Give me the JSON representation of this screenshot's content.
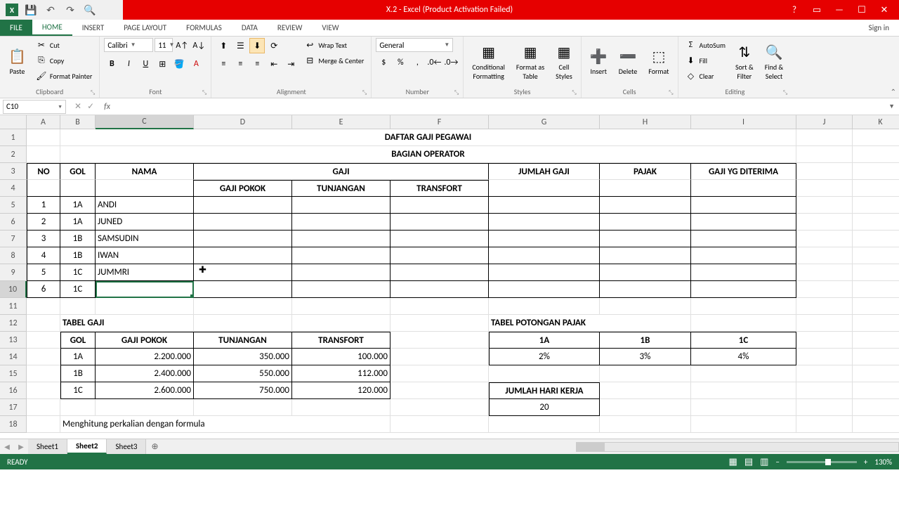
{
  "title": "X.2 - Excel (Product Activation Failed)",
  "signin": "Sign in",
  "menu": {
    "file": "FILE",
    "home": "HOME",
    "insert": "INSERT",
    "pageLayout": "PAGE LAYOUT",
    "formulas": "FORMULAS",
    "data": "DATA",
    "review": "REVIEW",
    "view": "VIEW"
  },
  "ribbon": {
    "clipboard": {
      "label": "Clipboard",
      "paste": "Paste",
      "cut": "Cut",
      "copy": "Copy",
      "formatPainter": "Format Painter"
    },
    "font": {
      "label": "Font",
      "name": "Calibri",
      "size": "11"
    },
    "alignment": {
      "label": "Alignment",
      "wrapText": "Wrap Text",
      "mergeCenter": "Merge & Center"
    },
    "number": {
      "label": "Number",
      "format": "General"
    },
    "styles": {
      "label": "Styles",
      "conditional": "Conditional\nFormatting",
      "formatAs": "Format as\nTable",
      "cellStyles": "Cell\nStyles"
    },
    "cells": {
      "label": "Cells",
      "insert": "Insert",
      "delete": "Delete",
      "format": "Format"
    },
    "editing": {
      "label": "Editing",
      "autosum": "AutoSum",
      "fill": "Fill",
      "clear": "Clear",
      "sortFilter": "Sort &\nFilter",
      "findSelect": "Find &\nSelect"
    }
  },
  "nameBox": "C10",
  "cols": [
    "A",
    "B",
    "C",
    "D",
    "E",
    "F",
    "G",
    "H",
    "I",
    "J",
    "K"
  ],
  "colWidths": {
    "A": 48,
    "B": 50,
    "C": 140,
    "D": 140,
    "E": 140,
    "F": 140,
    "G": 158,
    "H": 130,
    "I": 150,
    "J": 80,
    "K": 80
  },
  "sheet": {
    "title1": "DAFTAR GAJI PEGAWAI",
    "title2": "BAGIAN OPERATOR",
    "headers": {
      "no": "NO",
      "gol": "GOL",
      "nama": "NAMA",
      "gaji": "GAJI",
      "gajiPokok": "GAJI POKOK",
      "tunjangan": "TUNJANGAN",
      "transfort": "TRANSFORT",
      "jumlahGaji": "JUMLAH GAJI",
      "pajak": "PAJAK",
      "gajiDiterima": "GAJI YG DITERIMA"
    },
    "rows": [
      {
        "no": "1",
        "gol": "1A",
        "nama": "ANDI"
      },
      {
        "no": "2",
        "gol": "1A",
        "nama": "JUNED"
      },
      {
        "no": "3",
        "gol": "1B",
        "nama": "SAMSUDIN"
      },
      {
        "no": "4",
        "gol": "1B",
        "nama": "IWAN"
      },
      {
        "no": "5",
        "gol": "1C",
        "nama": "JUMMRI"
      },
      {
        "no": "6",
        "gol": "1C",
        "nama": ""
      }
    ],
    "tabelGaji": {
      "title": "TABEL GAJI",
      "headers": {
        "gol": "GOL",
        "gajiPokok": "GAJI POKOK",
        "tunjangan": "TUNJANGAN",
        "transfort": "TRANSFORT"
      },
      "rows": [
        {
          "gol": "1A",
          "gp": "2.200.000",
          "tj": "350.000",
          "tr": "100.000"
        },
        {
          "gol": "1B",
          "gp": "2.400.000",
          "tj": "550.000",
          "tr": "112.000"
        },
        {
          "gol": "1C",
          "gp": "2.600.000",
          "tj": "750.000",
          "tr": "120.000"
        }
      ]
    },
    "tabelPajak": {
      "title": "TABEL POTONGAN PAJAK",
      "cols": {
        "a": "1A",
        "b": "1B",
        "c": "1C"
      },
      "vals": {
        "a": "2%",
        "b": "3%",
        "c": "4%"
      }
    },
    "hariKerja": {
      "label": "JUMLAH HARI KERJA",
      "value": "20"
    },
    "note": "Menghitung perkalian dengan formula"
  },
  "tabs": {
    "sheet1": "Sheet1",
    "sheet2": "Sheet2",
    "sheet3": "Sheet3"
  },
  "status": {
    "ready": "READY",
    "zoom": "130%"
  }
}
